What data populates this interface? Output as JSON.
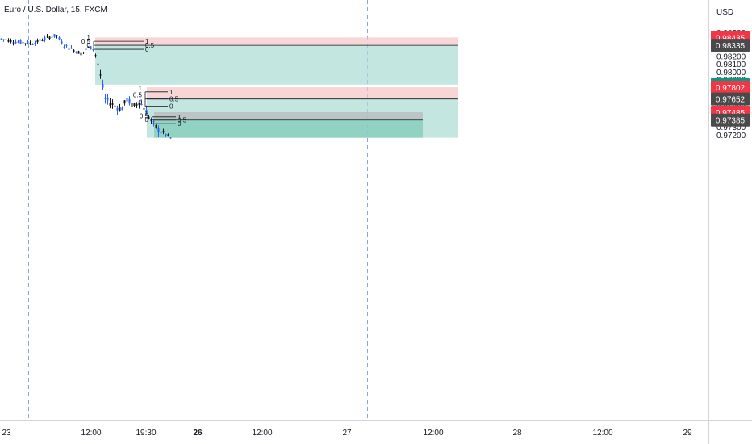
{
  "header": {
    "symbol_title": "Euro / U.S. Dollar, 15, FXCM"
  },
  "chart_data": {
    "type": "candlestick",
    "currency_label": "USD",
    "price_axis": {
      "ticks": [
        "0.98500",
        "0.98400",
        "0.98300",
        "0.98200",
        "0.98100",
        "0.98000",
        "0.97900",
        "0.97800",
        "0.97700",
        "0.97600",
        "0.97500",
        "0.97400",
        "0.97300",
        "0.97200"
      ],
      "range": [
        0.9716,
        0.9857
      ]
    },
    "time_axis": {
      "ticks": [
        {
          "label": "23",
          "bold": false
        },
        {
          "label": "12:00",
          "bold": false
        },
        {
          "label": "19:30",
          "bold": false
        },
        {
          "label": "26",
          "bold": true
        },
        {
          "label": "12:00",
          "bold": false
        },
        {
          "label": "27",
          "bold": false
        },
        {
          "label": "12:00",
          "bold": false
        },
        {
          "label": "28",
          "bold": false
        },
        {
          "label": "12:00",
          "bold": false
        },
        {
          "label": "29",
          "bold": false
        }
      ]
    },
    "price_badges": [
      {
        "label": "0.98435",
        "value": 0.98435,
        "color": "#f23645"
      },
      {
        "label": "0.98335",
        "value": 0.98335,
        "color": "#4a4a4a"
      },
      {
        "label": "0.97835",
        "value": 0.97835,
        "color": "#089981"
      },
      {
        "label": "0.97802",
        "value": 0.97802,
        "color": "#f23645"
      },
      {
        "label": "0.97652",
        "value": 0.97652,
        "color": "#4a4a4a"
      },
      {
        "label": "0.97485",
        "value": 0.97485,
        "color": "#f23645"
      },
      {
        "label": "0.97385",
        "value": 0.97385,
        "color": "#4a4a4a"
      }
    ],
    "positions": [
      {
        "stop": 0.98435,
        "entry": 0.98335,
        "target": 0.97835,
        "stop_color": "#f7c5c5",
        "target_color": "#a9ddd3"
      },
      {
        "stop": 0.97802,
        "entry": 0.97652,
        "target": 0.9716,
        "stop_color": "#f7c5c5",
        "target_color": "#a9ddd3"
      },
      {
        "stop": 0.97485,
        "entry": 0.97385,
        "target": 0.9716,
        "stop_color": "#b8b8b8",
        "target_color": "#7cc9b7"
      }
    ],
    "fib_levels": [
      {
        "labels": [
          "1",
          "0.5",
          "0"
        ],
        "prices": [
          0.98386,
          0.98335,
          0.98284
        ]
      },
      {
        "labels": [
          "1",
          "0.5",
          "0"
        ],
        "prices": [
          0.97743,
          0.97652,
          0.9756
        ]
      },
      {
        "labels": [
          "1",
          "0.5",
          "0"
        ],
        "prices": [
          0.97425,
          0.97385,
          0.9734
        ]
      }
    ],
    "colors": {
      "up_candle": "#2962ff",
      "down_candle": "#131722",
      "session_line": "#5b7fd6",
      "axis_text": "#131722"
    }
  }
}
